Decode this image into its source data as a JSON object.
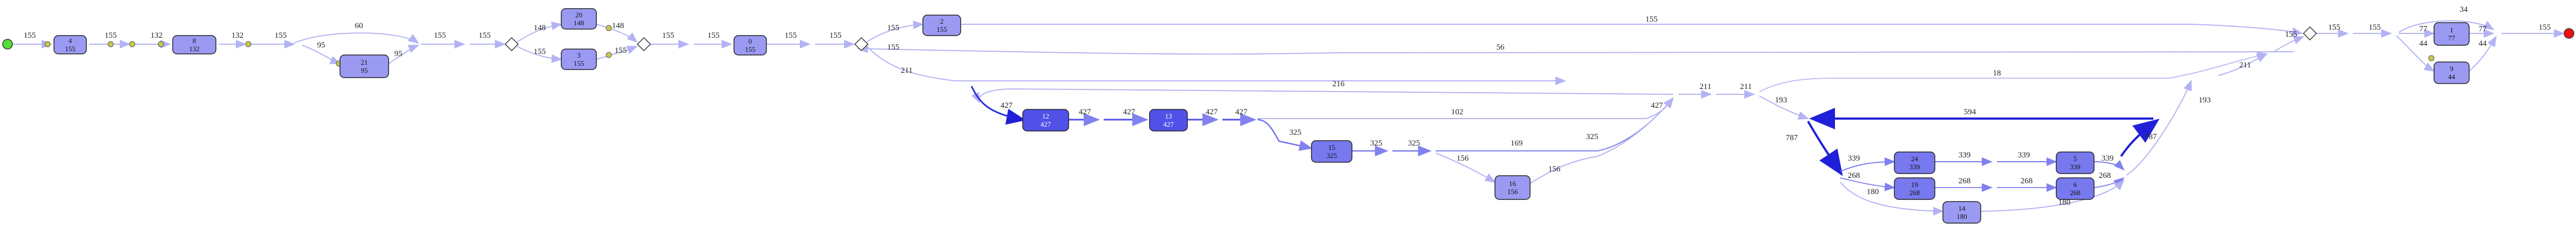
{
  "colors": {
    "node_light": "#9a9af3",
    "node_mid": "#7878ef",
    "node_dark": "#5151e8",
    "edge_light": "#b3b3f4",
    "edge_mid": "#8181ef",
    "edge_dark": "#2020d8",
    "start": "#55dd33",
    "end": "#ee1111",
    "connector": "#c8c84a"
  },
  "nodes": [
    {
      "id": "start",
      "kind": "start"
    },
    {
      "id": "n4",
      "label": "4",
      "count": "155",
      "shade": "light"
    },
    {
      "id": "n8",
      "label": "8",
      "count": "132",
      "shade": "light"
    },
    {
      "id": "n21",
      "label": "21",
      "count": "95",
      "shade": "light"
    },
    {
      "id": "n20",
      "label": "20",
      "count": "148",
      "shade": "light"
    },
    {
      "id": "n3",
      "label": "3",
      "count": "155",
      "shade": "light"
    },
    {
      "id": "n0",
      "label": "0",
      "count": "155",
      "shade": "light"
    },
    {
      "id": "n2",
      "label": "2",
      "count": "155",
      "shade": "light"
    },
    {
      "id": "n12",
      "label": "12",
      "count": "427",
      "shade": "dark"
    },
    {
      "id": "n13",
      "label": "13",
      "count": "427",
      "shade": "dark"
    },
    {
      "id": "n15",
      "label": "15",
      "count": "325",
      "shade": "mid"
    },
    {
      "id": "n16",
      "label": "16",
      "count": "156",
      "shade": "light"
    },
    {
      "id": "n24",
      "label": "24",
      "count": "339",
      "shade": "mid"
    },
    {
      "id": "n5",
      "label": "5",
      "count": "339",
      "shade": "mid"
    },
    {
      "id": "n19",
      "label": "19",
      "count": "268",
      "shade": "mid"
    },
    {
      "id": "n6",
      "label": "6",
      "count": "268",
      "shade": "mid"
    },
    {
      "id": "n14",
      "label": "14",
      "count": "180",
      "shade": "light"
    },
    {
      "id": "n1",
      "label": "1",
      "count": "77",
      "shade": "light"
    },
    {
      "id": "n9",
      "label": "9",
      "count": "44",
      "shade": "light"
    },
    {
      "id": "end",
      "kind": "end"
    }
  ],
  "gateways": [
    "g1",
    "g2",
    "g3",
    "g4"
  ],
  "edge_labels": [
    {
      "id": "e-start-4",
      "text": "155"
    },
    {
      "id": "e-4-8a",
      "text": "155"
    },
    {
      "id": "e-4-8b",
      "text": "132"
    },
    {
      "id": "e-8-x",
      "text": "132"
    },
    {
      "id": "e-x-21",
      "text": "155"
    },
    {
      "id": "e-split-21",
      "text": "95"
    },
    {
      "id": "e-loop-60",
      "text": "60"
    },
    {
      "id": "e-21-out",
      "text": "95"
    },
    {
      "id": "e-a-g1",
      "text": "155"
    },
    {
      "id": "e-b-g1",
      "text": "155"
    },
    {
      "id": "e-g1-20",
      "text": "148"
    },
    {
      "id": "e-g1-3",
      "text": "155"
    },
    {
      "id": "e-20-g2",
      "text": "148"
    },
    {
      "id": "e-3-g2",
      "text": "155"
    },
    {
      "id": "e-g2-0",
      "text": "155"
    },
    {
      "id": "e-g2-0b",
      "text": "155"
    },
    {
      "id": "e-0-g3",
      "text": "155"
    },
    {
      "id": "e-0-g3b",
      "text": "155"
    },
    {
      "id": "e-g3-2",
      "text": "155"
    },
    {
      "id": "e-g3-low",
      "text": "155"
    },
    {
      "id": "e-2-g4",
      "text": "155"
    },
    {
      "id": "e-back-56",
      "text": "56"
    },
    {
      "id": "e-g3-12",
      "text": "211"
    },
    {
      "id": "e-back-216",
      "text": "216"
    },
    {
      "id": "e-in-12",
      "text": "427"
    },
    {
      "id": "e-12-13a",
      "text": "427"
    },
    {
      "id": "e-12-13b",
      "text": "427"
    },
    {
      "id": "e-13-15a",
      "text": "427"
    },
    {
      "id": "e-13-15b",
      "text": "427"
    },
    {
      "id": "e-13-102",
      "text": "102"
    },
    {
      "id": "e-15-a",
      "text": "325"
    },
    {
      "id": "e-15-b",
      "text": "325"
    },
    {
      "id": "e-15-c",
      "text": "325"
    },
    {
      "id": "e-15-169",
      "text": "169"
    },
    {
      "id": "e-15-16",
      "text": "156"
    },
    {
      "id": "e-16-out",
      "text": "156"
    },
    {
      "id": "e-325-up",
      "text": "325"
    },
    {
      "id": "e-427-up",
      "text": "427"
    },
    {
      "id": "e-m-211",
      "text": "211"
    },
    {
      "id": "e-m-211b",
      "text": "211"
    },
    {
      "id": "e-m-18",
      "text": "18"
    },
    {
      "id": "e-m-193",
      "text": "193"
    },
    {
      "id": "e-594",
      "text": "594"
    },
    {
      "id": "e-787a",
      "text": "787"
    },
    {
      "id": "e-787b",
      "text": "787"
    },
    {
      "id": "e-339a",
      "text": "339"
    },
    {
      "id": "e-339b",
      "text": "339"
    },
    {
      "id": "e-339c",
      "text": "339"
    },
    {
      "id": "e-339d",
      "text": "339"
    },
    {
      "id": "e-268a",
      "text": "268"
    },
    {
      "id": "e-268b",
      "text": "268"
    },
    {
      "id": "e-268c",
      "text": "268"
    },
    {
      "id": "e-268d",
      "text": "268"
    },
    {
      "id": "e-180a",
      "text": "180"
    },
    {
      "id": "e-180b",
      "text": "180"
    },
    {
      "id": "e-193b",
      "text": "193"
    },
    {
      "id": "e-211-g4",
      "text": "211"
    },
    {
      "id": "e-155-g4",
      "text": "155"
    },
    {
      "id": "e-g4-out",
      "text": "155"
    },
    {
      "id": "e-g4-out2",
      "text": "155"
    },
    {
      "id": "e-34",
      "text": "34"
    },
    {
      "id": "e-77a",
      "text": "77"
    },
    {
      "id": "e-77b",
      "text": "77"
    },
    {
      "id": "e-44a",
      "text": "44"
    },
    {
      "id": "e-44b",
      "text": "44"
    },
    {
      "id": "e-end",
      "text": "155"
    }
  ]
}
